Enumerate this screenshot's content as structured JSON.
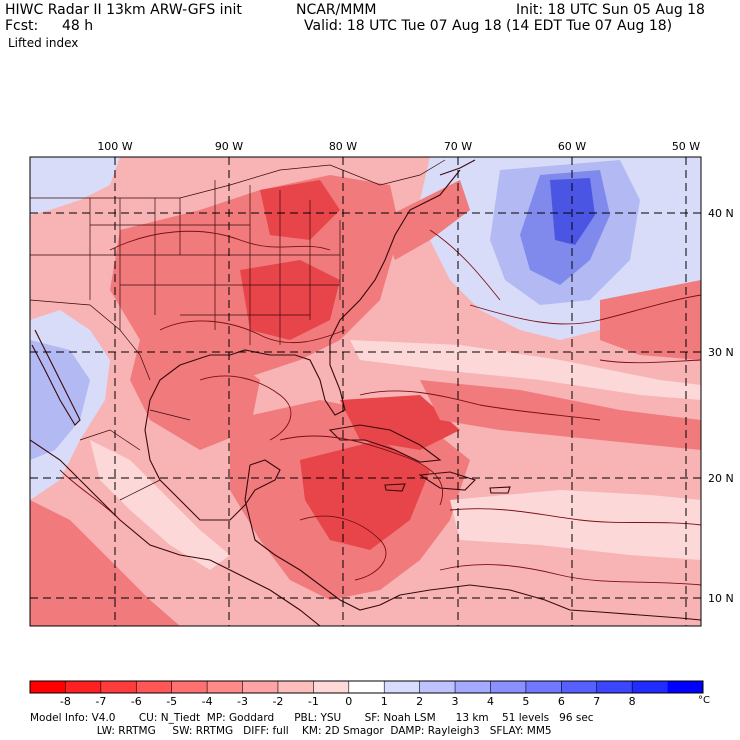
{
  "header": {
    "model_title": "HIWC Radar II 13km ARW-GFS init",
    "org": "NCAR/MMM",
    "init": "Init: 18 UTC Sun 05 Aug 18",
    "fcst_label": "Fcst:",
    "fcst_value": "48 h",
    "valid": "Valid: 18 UTC Tue 07 Aug 18 (14 EDT Tue 07 Aug 18)",
    "field": "Lifted index"
  },
  "map": {
    "lon_labels": [
      "100 W",
      "90 W",
      "80 W",
      "70 W",
      "60 W",
      "50 W"
    ],
    "lat_labels": [
      "40 N",
      "30 N",
      "20 N",
      "10 N"
    ],
    "colors": {
      "strong_red": "#e8454a",
      "mid_red": "#f07a7c",
      "light_red": "#f8b3b4",
      "pale_red": "#fcd9d8",
      "pale_blue": "#d8dcf8",
      "light_blue": "#b3b9f2",
      "mid_blue": "#8089ec",
      "deep_blue": "#4b55e4",
      "contour": "#7a0f14",
      "border": "#3a0a0c"
    }
  },
  "colorbar": {
    "ticks": [
      "-8",
      "-7",
      "-6",
      "-5",
      "-4",
      "-3",
      "-2",
      "-1",
      "0",
      "1",
      "2",
      "3",
      "4",
      "5",
      "6",
      "7",
      "8"
    ],
    "unit": "°C",
    "colors": [
      "#ff0000",
      "#ff2121",
      "#ff3c3c",
      "#ff5656",
      "#ff7070",
      "#ff8a8a",
      "#ffa4a4",
      "#ffbebe",
      "#ffd8d8",
      "#ffffff",
      "#d8dcff",
      "#bec3ff",
      "#a4aaff",
      "#8a91ff",
      "#7078ff",
      "#565fff",
      "#3c46ff",
      "#212dff",
      "#0000ff"
    ]
  },
  "model_info": {
    "line1": "Model Info: V4.0       CU: N_Tiedt  MP: Goddard      PBL: YSU       SF: Noah LSM      13 km    51 levels   96 sec",
    "line2": "                    LW: RRTMG     SW: RRTMG   DIFF: full    KM: 2D Smagor  DAMP: Rayleigh3   SFLAY: MM5"
  }
}
